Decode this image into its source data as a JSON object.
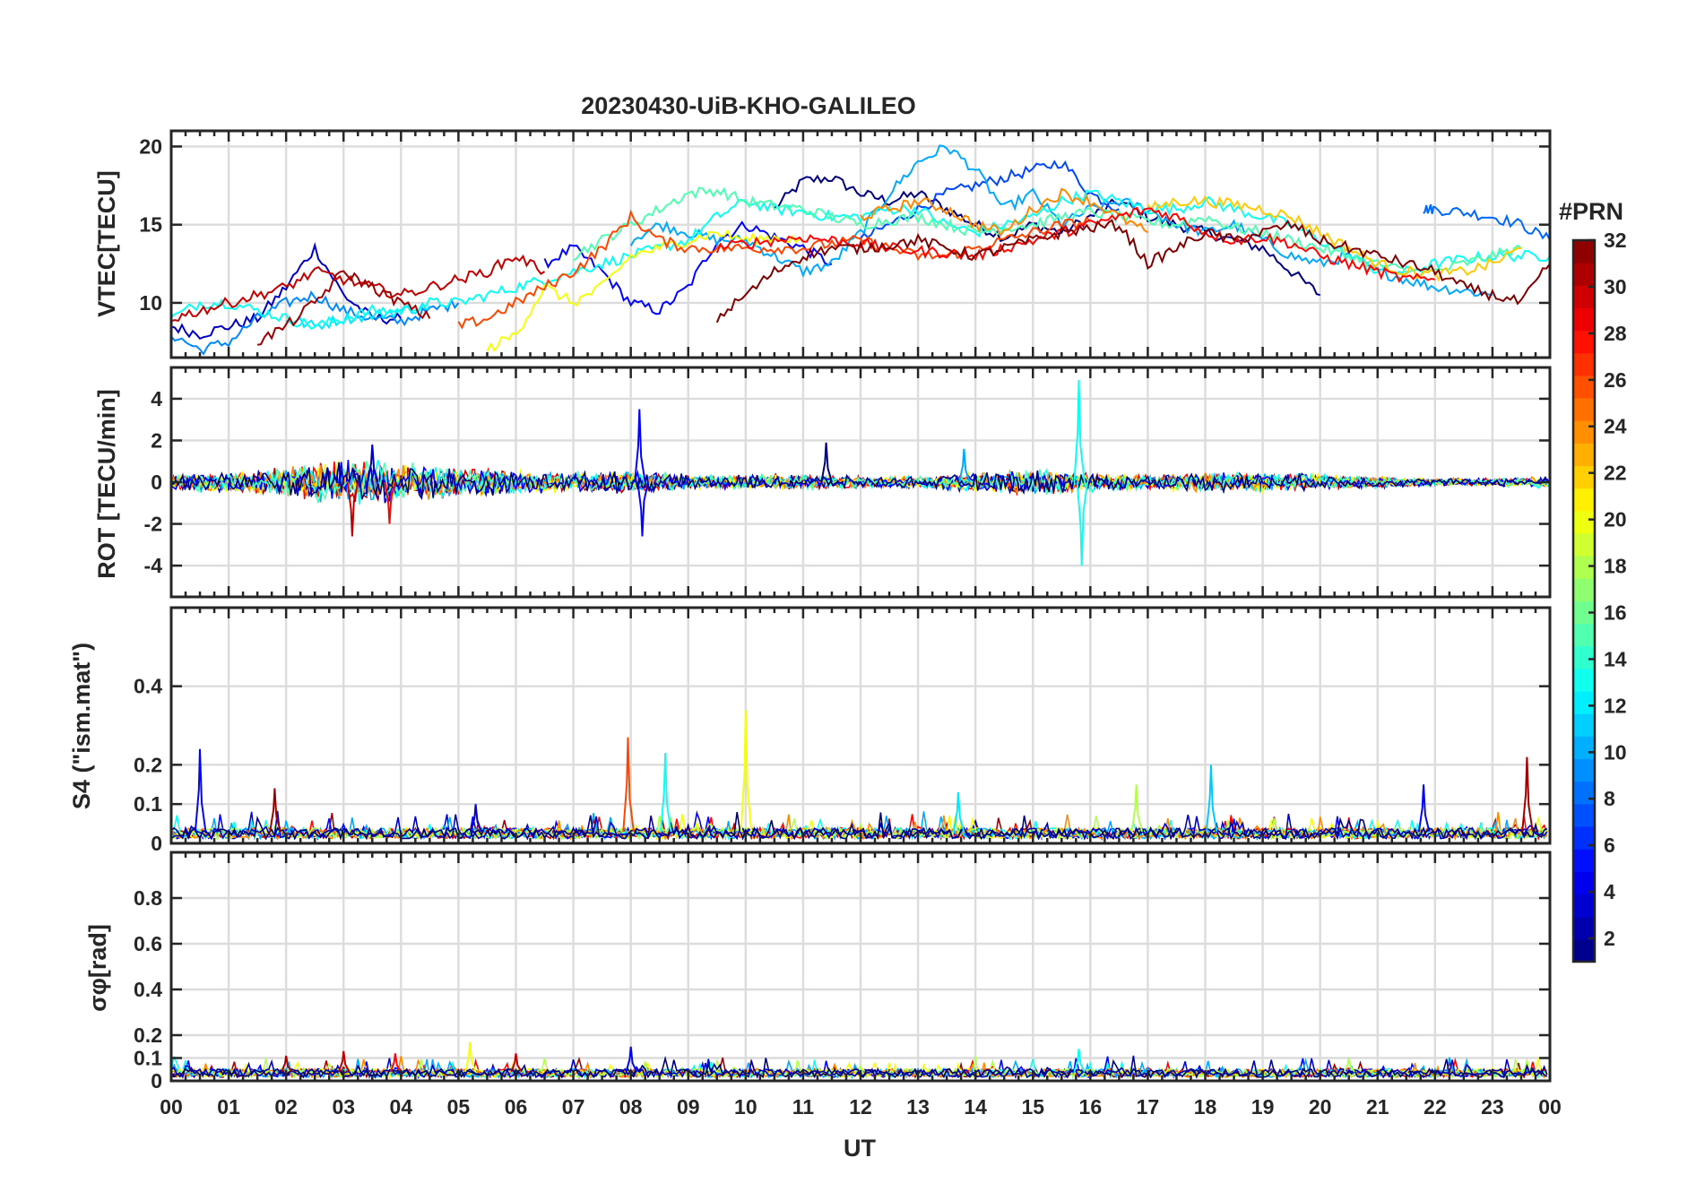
{
  "figure": {
    "title": "20230430-UiB-KHO-GALILEO"
  },
  "x_axis": {
    "label": "UT",
    "tick_labels": [
      "00",
      "01",
      "02",
      "03",
      "04",
      "05",
      "06",
      "07",
      "08",
      "09",
      "10",
      "11",
      "12",
      "13",
      "14",
      "15",
      "16",
      "17",
      "18",
      "19",
      "20",
      "21",
      "22",
      "23",
      "00"
    ],
    "range_hours": [
      0,
      24
    ]
  },
  "colorbar": {
    "label": "#PRN",
    "range": [
      1,
      32
    ],
    "tick_values": [
      2,
      4,
      6,
      8,
      10,
      12,
      14,
      16,
      18,
      20,
      22,
      24,
      26,
      28,
      30,
      32
    ],
    "colormap": "jet"
  },
  "chart_data": [
    {
      "type": "line",
      "name": "vtec",
      "ylabel": "VTEC[TECU]",
      "ylim": [
        6.5,
        21
      ],
      "yticks": [
        10,
        15,
        20
      ],
      "grid": true,
      "x_unit": "hours UT",
      "series": [
        {
          "prn": 1,
          "x": [
            10.5,
            11,
            11.5,
            12,
            12.5,
            13,
            13.5,
            14,
            14.5,
            15,
            15.5,
            16,
            16.5,
            17,
            17.5,
            18,
            18.5,
            19,
            19.5,
            20
          ],
          "values": [
            16,
            17.8,
            18,
            17,
            16.5,
            17,
            16,
            15,
            14.2,
            15,
            14.5,
            15.5,
            16.5,
            15.5,
            15,
            14.5,
            14,
            13.5,
            12,
            10.5
          ]
        },
        {
          "prn": 3,
          "x": [
            0,
            0.5,
            1,
            1.5,
            2,
            2.5,
            3,
            3.5,
            4
          ],
          "values": [
            8.5,
            8,
            8.5,
            9,
            11,
            13.5,
            10.5,
            9,
            9
          ]
        },
        {
          "prn": 5,
          "x": [
            6.5,
            7,
            7.5,
            8,
            8.5,
            9,
            9.5,
            10,
            10.5,
            11,
            11.5
          ],
          "values": [
            12.5,
            13.5,
            12,
            10,
            9.5,
            11,
            14,
            15,
            14.2,
            13.5,
            12.5
          ]
        },
        {
          "prn": 7,
          "x": [
            12,
            12.5,
            13,
            13.5,
            14,
            14.5,
            15,
            15.5,
            16,
            16.5
          ],
          "values": [
            14,
            15,
            16,
            17,
            17.5,
            18,
            18.5,
            19,
            17,
            16
          ]
        },
        {
          "prn": 8,
          "x": [
            21.8,
            22,
            22.5,
            23,
            23.5,
            24
          ],
          "values": [
            16,
            16,
            15.8,
            15.5,
            15,
            14
          ]
        },
        {
          "prn": 9,
          "x": [
            0,
            0.5,
            1,
            1.5,
            2,
            2.5,
            3,
            3.5,
            4,
            4.5,
            5
          ],
          "values": [
            8,
            7,
            7.5,
            9,
            10,
            10.5,
            9.5,
            9,
            8.8,
            9.5,
            10
          ]
        },
        {
          "prn": 10,
          "x": [
            8,
            8.5,
            9,
            9.5,
            10,
            10.5,
            11,
            11.5,
            12,
            12.5,
            13,
            13.5,
            14,
            14.5,
            15,
            15.5,
            16,
            16.5,
            17,
            17.5,
            18,
            18.5,
            19,
            19.5,
            20,
            20.5,
            21,
            21.5,
            22,
            22.5,
            23
          ],
          "values": [
            14,
            15,
            14.5,
            14,
            14,
            13,
            12,
            12.5,
            14.5,
            17,
            19,
            20,
            18.5,
            16,
            17,
            15,
            16,
            16.5,
            16,
            15,
            14.5,
            15,
            14,
            13,
            12.5,
            13,
            12,
            11.5,
            11,
            10.8,
            10.5
          ]
        },
        {
          "prn": 12,
          "x": [
            2,
            2.5,
            3,
            3.5,
            4,
            4.5
          ],
          "values": [
            9,
            8.5,
            9,
            9.2,
            9.5,
            9.8
          ]
        },
        {
          "prn": 13,
          "x": [
            0,
            0.5,
            1,
            1.5,
            2,
            2.5,
            3,
            3.5,
            4,
            4.5,
            5,
            5.5,
            6,
            6.5,
            7,
            7.5,
            8,
            8.5,
            9,
            9.5,
            10,
            10.5,
            11,
            11.5,
            12,
            12.5,
            13,
            13.5,
            14,
            14.5,
            15,
            15.5,
            16,
            16.5,
            17,
            17.5,
            18,
            18.5,
            19,
            19.5,
            20,
            20.5,
            21,
            21.5,
            22,
            22.5,
            23,
            23.5,
            24
          ],
          "values": [
            9,
            10,
            10,
            9.5,
            9,
            8.5,
            9,
            9.5,
            9.5,
            10,
            10,
            10.5,
            11,
            11.5,
            12,
            12.5,
            13,
            13.5,
            14,
            15.5,
            16.5,
            16,
            15.8,
            15.5,
            15.5,
            16,
            16,
            15,
            14.5,
            15,
            15.5,
            16.5,
            17,
            16.5,
            16,
            16,
            16.5,
            16,
            15.5,
            15,
            14,
            13,
            12,
            12,
            12.5,
            12.8,
            13,
            13,
            13
          ]
        },
        {
          "prn": 15,
          "x": [
            7,
            7.5,
            8,
            8.5,
            9,
            9.5,
            10,
            10.5,
            11,
            11.5,
            12,
            12.5,
            13,
            13.5,
            14,
            14.5,
            15,
            15.5,
            16,
            16.5,
            17,
            17.5,
            18,
            18.5,
            19,
            19.5,
            20,
            20.5,
            21,
            21.5,
            22,
            22.5,
            23,
            23.5
          ],
          "values": [
            13,
            14,
            15,
            16,
            17,
            17.2,
            16.5,
            16.2,
            16,
            15.5,
            15,
            15.3,
            15.5,
            15,
            14.5,
            14.8,
            15,
            15.5,
            15.8,
            15.5,
            15.2,
            15,
            15.5,
            14.8,
            14.5,
            14,
            13.5,
            13,
            12.5,
            12,
            12,
            12.5,
            13,
            13.5
          ]
        },
        {
          "prn": 20,
          "x": [
            5.5,
            6,
            6.5,
            7,
            7.5,
            8,
            8.5,
            9,
            9.5,
            10,
            10.5,
            11
          ],
          "values": [
            7,
            8,
            11,
            10,
            11,
            13,
            13.5,
            14,
            14.5,
            14,
            14.2,
            14
          ]
        },
        {
          "prn": 22,
          "x": [
            17,
            17.5,
            18,
            18.5,
            19,
            19.5,
            20,
            20.5,
            21,
            21.5,
            22,
            22.5,
            23,
            23.5
          ],
          "values": [
            16,
            16.5,
            16.5,
            16.3,
            16,
            15.5,
            14.5,
            13.5,
            12.5,
            12,
            11.8,
            12,
            12.5,
            13.5
          ]
        },
        {
          "prn": 24,
          "x": [
            12,
            12.5,
            13,
            13.5,
            14,
            14.5,
            15,
            15.5,
            16,
            16.5,
            17
          ],
          "values": [
            15.5,
            16,
            16.5,
            16,
            15,
            14.5,
            16,
            17,
            16.5,
            15.5,
            14.5
          ]
        },
        {
          "prn": 26,
          "x": [
            5,
            5.5,
            6,
            6.5,
            7,
            7.5,
            8,
            8.5,
            9,
            9.5,
            10,
            10.5,
            11,
            11.5,
            12,
            12.5,
            13,
            13.5,
            14,
            14.5,
            15,
            15.5,
            16
          ],
          "values": [
            8.5,
            9,
            10,
            11,
            12,
            13.5,
            15.5,
            14,
            13.5,
            13.5,
            13.5,
            13.5,
            13.5,
            13.8,
            14,
            13.5,
            13,
            13,
            13.5,
            14,
            14.5,
            15,
            15.2
          ]
        },
        {
          "prn": 28,
          "x": [
            9.5,
            10,
            10.5,
            11,
            11.5,
            12,
            12.5,
            13,
            13.5,
            14,
            14.5,
            15,
            15.5,
            16,
            16.5,
            17,
            17.5,
            18,
            18.5,
            19,
            19.5,
            20,
            20.5,
            21,
            21.5,
            22
          ],
          "values": [
            13.5,
            13.8,
            14,
            14.2,
            14,
            13.8,
            13.5,
            13.3,
            13.2,
            13,
            13.5,
            14,
            14.5,
            15,
            15.5,
            16,
            15.5,
            14.5,
            14,
            14.2,
            13.8,
            13,
            12.5,
            12,
            11.5,
            11.5
          ]
        },
        {
          "prn": 30,
          "x": [
            0,
            0.5,
            1,
            1.5,
            2,
            2.5,
            3,
            3.5,
            4,
            4.5,
            5,
            5.5,
            6,
            6.5
          ],
          "values": [
            9,
            9.5,
            10,
            10.5,
            11,
            12,
            11.5,
            11,
            10.5,
            11,
            11.5,
            12,
            13,
            12
          ]
        },
        {
          "prn": 31,
          "x": [
            1.5,
            2,
            2.5,
            3,
            3.5,
            4,
            4.5
          ],
          "values": [
            7.5,
            8.5,
            10,
            12,
            11,
            10,
            9
          ]
        },
        {
          "prn": 32,
          "x": [
            9.5,
            10,
            10.5,
            11,
            11.5,
            12,
            12.5,
            13,
            13.5,
            14,
            14.5,
            15,
            15.5,
            16,
            16.5,
            17,
            17.5,
            18,
            18.5,
            19,
            19.5,
            20,
            20.5,
            21,
            21.5,
            22,
            22.5,
            23,
            23.5,
            24
          ],
          "values": [
            9,
            10.5,
            12,
            13,
            13.5,
            13.5,
            13.7,
            14,
            13.5,
            13,
            13.5,
            14,
            14.5,
            14.8,
            15,
            12.5,
            13.5,
            14.5,
            14,
            14.5,
            15,
            14,
            13.5,
            13,
            12.5,
            12,
            11,
            10.5,
            10,
            12.5
          ]
        }
      ]
    },
    {
      "type": "line",
      "name": "rot",
      "ylabel": "ROT [TECU/min]",
      "ylim": [
        -5.5,
        5.5
      ],
      "yticks": [
        -4,
        -2,
        0,
        2,
        4
      ],
      "grid": true,
      "noise_envelope": {
        "x": [
          0,
          1,
          2,
          3,
          4,
          5,
          6,
          7,
          8,
          9,
          10,
          11,
          12,
          13,
          14,
          15,
          16,
          17,
          18,
          19,
          20,
          21,
          22,
          23,
          24
        ],
        "amplitude": [
          0.4,
          0.5,
          0.8,
          1.2,
          1.0,
          0.8,
          0.6,
          0.5,
          0.6,
          0.4,
          0.4,
          0.4,
          0.3,
          0.3,
          0.5,
          0.7,
          0.5,
          0.4,
          0.5,
          0.5,
          0.4,
          0.3,
          0.2,
          0.2,
          0.3
        ]
      },
      "spikes": [
        {
          "x": 3.15,
          "peak": -2.6,
          "prn": 30
        },
        {
          "x": 3.8,
          "peak": -2.0,
          "prn": 28
        },
        {
          "x": 3.5,
          "peak": 1.8,
          "prn": 3
        },
        {
          "x": 8.15,
          "peak": 3.5,
          "prn": 5
        },
        {
          "x": 8.2,
          "peak": -2.6,
          "prn": 5
        },
        {
          "x": 11.4,
          "peak": 1.9,
          "prn": 1
        },
        {
          "x": 13.8,
          "peak": 1.6,
          "prn": 10
        },
        {
          "x": 15.8,
          "peak": 4.9,
          "prn": 13
        },
        {
          "x": 15.85,
          "peak": -4.0,
          "prn": 13
        }
      ]
    },
    {
      "type": "line",
      "name": "s4",
      "ylabel": "S4 (\"ism.mat\")",
      "ylim": [
        0,
        0.6
      ],
      "yticks": [
        0,
        0.1,
        0.2,
        0.4
      ],
      "grid": true,
      "baseline": 0.03,
      "spikes": [
        {
          "x": 0.5,
          "peak": 0.24,
          "prn": 5
        },
        {
          "x": 1.8,
          "peak": 0.14,
          "prn": 31
        },
        {
          "x": 5.3,
          "peak": 0.1,
          "prn": 4
        },
        {
          "x": 7.95,
          "peak": 0.27,
          "prn": 26
        },
        {
          "x": 8.6,
          "peak": 0.23,
          "prn": 13
        },
        {
          "x": 10.0,
          "peak": 0.34,
          "prn": 20
        },
        {
          "x": 13.7,
          "peak": 0.13,
          "prn": 12
        },
        {
          "x": 16.8,
          "peak": 0.15,
          "prn": 18
        },
        {
          "x": 18.1,
          "peak": 0.2,
          "prn": 11
        },
        {
          "x": 21.8,
          "peak": 0.15,
          "prn": 5
        },
        {
          "x": 23.6,
          "peak": 0.22,
          "prn": 31
        }
      ]
    },
    {
      "type": "line",
      "name": "sigma-phi",
      "ylabel": "σφ[rad]",
      "ylim": [
        0,
        1.0
      ],
      "yticks": [
        0,
        0.1,
        0.2,
        0.4,
        0.6,
        0.8
      ],
      "grid": true,
      "baseline": 0.04,
      "spikes": [
        {
          "x": 2.0,
          "peak": 0.11,
          "prn": 31
        },
        {
          "x": 3.0,
          "peak": 0.13,
          "prn": 30
        },
        {
          "x": 3.9,
          "peak": 0.12,
          "prn": 28
        },
        {
          "x": 5.2,
          "peak": 0.17,
          "prn": 20
        },
        {
          "x": 6.0,
          "peak": 0.12,
          "prn": 30
        },
        {
          "x": 8.0,
          "peak": 0.15,
          "prn": 5
        },
        {
          "x": 15.8,
          "peak": 0.14,
          "prn": 13
        },
        {
          "x": 20.5,
          "peak": 0.1,
          "prn": 18
        }
      ]
    }
  ]
}
